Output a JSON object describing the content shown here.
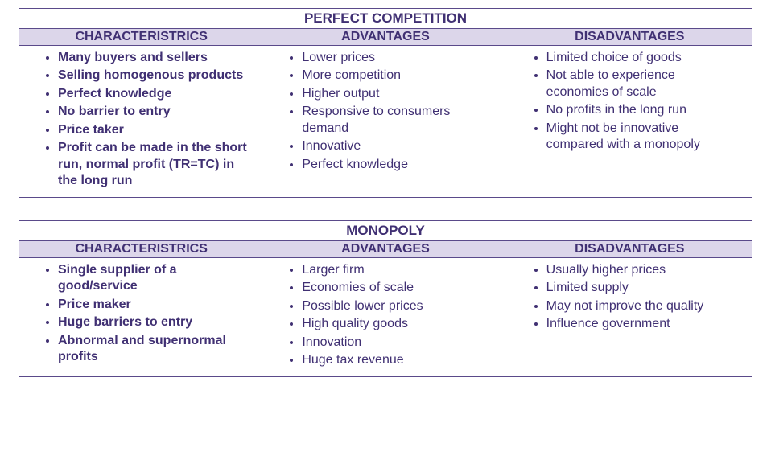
{
  "colors": {
    "text": "#403073",
    "header_bg": "#dcd6ea",
    "border": "#5a4a8a",
    "page_bg": "#ffffff"
  },
  "typography": {
    "font_family": "Arial",
    "title_fontsize_pt": 13,
    "header_fontsize_pt": 12,
    "body_fontsize_pt": 12
  },
  "tables": [
    {
      "title": "PERFECT COMPETITION",
      "columns": [
        {
          "header": "CHARACTERISTRICS",
          "bold_items": true,
          "items": [
            "Many buyers and sellers",
            "Selling homogenous products",
            "Perfect knowledge",
            "No barrier to entry",
            "Price taker",
            "Profit can be made in the short run, normal profit (TR=TC) in the long run"
          ]
        },
        {
          "header": "ADVANTAGES",
          "bold_items": false,
          "items": [
            "Lower prices",
            "More competition",
            "Higher output",
            "Responsive to consumers demand",
            "Innovative",
            "Perfect knowledge"
          ]
        },
        {
          "header": "DISADVANTAGES",
          "bold_items": false,
          "items": [
            "Limited choice of goods",
            "Not able to experience economies of scale",
            "No profits in the long run",
            "Might not be innovative compared with a monopoly"
          ]
        }
      ]
    },
    {
      "title": "MONOPOLY",
      "columns": [
        {
          "header": "CHARACTERISTRICS",
          "bold_items": true,
          "items": [
            "Single supplier of a good/service",
            "Price maker",
            "Huge barriers to entry",
            "Abnormal and supernormal profits"
          ]
        },
        {
          "header": "ADVANTAGES",
          "bold_items": false,
          "items": [
            "Larger firm",
            "Economies of scale",
            "Possible lower prices",
            "High quality goods",
            "Innovation",
            "Huge tax revenue"
          ]
        },
        {
          "header": "DISADVANTAGES",
          "bold_items": false,
          "items": [
            "Usually higher prices",
            "Limited supply",
            "May not improve the quality",
            "Influence government"
          ]
        }
      ]
    }
  ]
}
